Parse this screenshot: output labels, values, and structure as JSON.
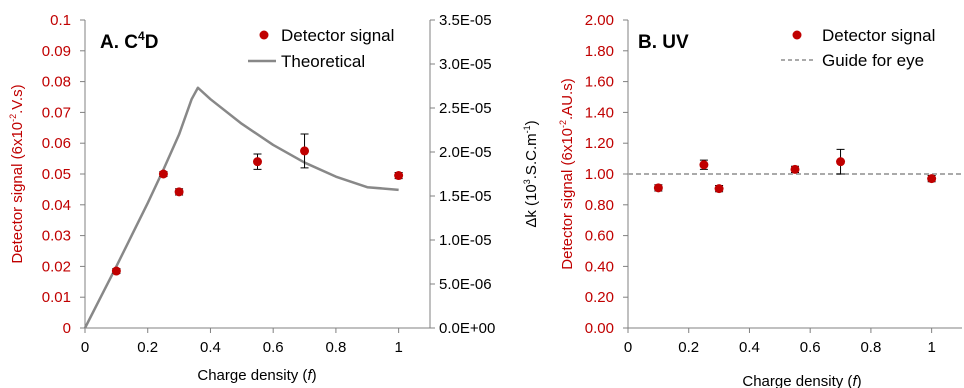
{
  "chart_data": [
    {
      "type": "scatter",
      "panel_label": "A. C",
      "panel_label_sup": "4",
      "panel_label_tail": "D",
      "xlabel_prefix": "Charge density (",
      "xlabel_var": "f",
      "xlabel_suffix": ")",
      "ylabel": "Detector signal  (6x10",
      "ylabel_exp": "-2",
      "ylabel_tail": ".V.s)",
      "y2label_prefix": "Δk (10",
      "y2label_exp": "3",
      "y2label_mid": ".S.C.m",
      "y2label_exp2": "-1",
      "y2label_tail": ")",
      "xlim": [
        0,
        1.1
      ],
      "ylim": [
        0,
        0.1
      ],
      "y2lim": [
        0,
        3.5e-05
      ],
      "xticks": [
        "0",
        "0.2",
        "0.4",
        "0.6",
        "0.8",
        "1"
      ],
      "yticks": [
        "0",
        "0.01",
        "0.02",
        "0.03",
        "0.04",
        "0.05",
        "0.06",
        "0.07",
        "0.08",
        "0.09",
        "0.1"
      ],
      "y2ticks": [
        "0.0E+00",
        "5.0E-06",
        "1.0E-05",
        "1.5E-05",
        "2.0E-05",
        "2.5E-05",
        "3.0E-05",
        "3.5E-05"
      ],
      "legend_position": "top-right",
      "series": [
        {
          "name": "Detector signal",
          "kind": "points",
          "color": "#c00000",
          "x": [
            0.1,
            0.25,
            0.3,
            0.55,
            0.7,
            1.0
          ],
          "y": [
            0.0185,
            0.05,
            0.0442,
            0.054,
            0.0575,
            0.0495
          ],
          "err": [
            0.0008,
            0.0008,
            0.001,
            0.0025,
            0.0055,
            0.001
          ]
        },
        {
          "name": "Theoretical",
          "kind": "line",
          "axis": "secondary",
          "color": "#888888",
          "x": [
            0.0,
            0.05,
            0.1,
            0.15,
            0.2,
            0.25,
            0.3,
            0.34,
            0.36,
            0.4,
            0.5,
            0.6,
            0.7,
            0.8,
            0.9,
            1.0
          ],
          "y": [
            0.0,
            3.5e-06,
            7e-06,
            1.06e-05,
            1.42e-05,
            1.8e-05,
            2.2e-05,
            2.6e-05,
            2.73e-05,
            2.6e-05,
            2.32e-05,
            2.08e-05,
            1.88e-05,
            1.72e-05,
            1.6e-05,
            1.57e-05
          ]
        }
      ]
    },
    {
      "type": "scatter",
      "panel_label": "B. UV",
      "xlabel_prefix": "Charge density (",
      "xlabel_var": "f",
      "xlabel_suffix": ")",
      "ylabel": "Detector signal (6x10",
      "ylabel_exp": "-2",
      "ylabel_tail": ".AU.s)",
      "xlim": [
        0,
        1.1
      ],
      "ylim": [
        0,
        2.0
      ],
      "xticks": [
        "0",
        "0.2",
        "0.4",
        "0.6",
        "0.8",
        "1"
      ],
      "yticks": [
        "0.00",
        "0.20",
        "0.40",
        "0.60",
        "0.80",
        "1.00",
        "1.20",
        "1.40",
        "1.60",
        "1.80",
        "2.00"
      ],
      "legend_position": "top-right",
      "series": [
        {
          "name": "Detector signal",
          "kind": "points",
          "color": "#c00000",
          "x": [
            0.1,
            0.25,
            0.3,
            0.55,
            0.7,
            1.0
          ],
          "y": [
            0.91,
            1.06,
            0.905,
            1.03,
            1.08,
            0.97
          ],
          "err": [
            0.02,
            0.03,
            0.02,
            0.02,
            0.08,
            0.02
          ]
        },
        {
          "name": "Guide for eye",
          "kind": "dashed",
          "color": "#aaaaaa",
          "x": [
            0.0,
            1.1
          ],
          "y": [
            1.0,
            1.0
          ]
        }
      ]
    }
  ]
}
